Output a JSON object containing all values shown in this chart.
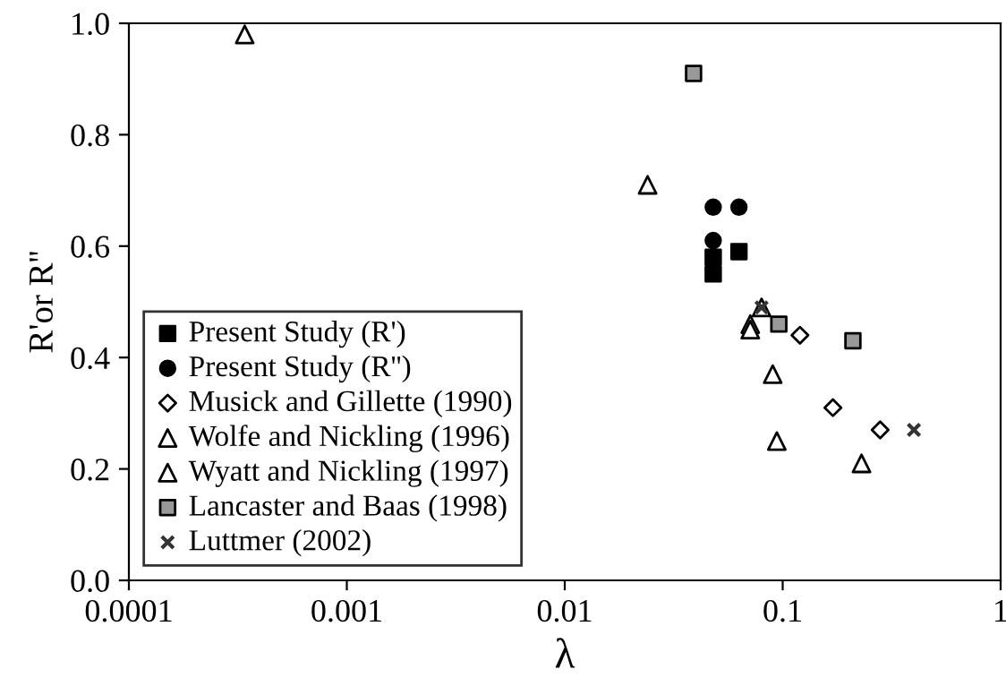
{
  "chart_data": {
    "type": "scatter",
    "xlabel": "λ",
    "ylabel": "R'or R''",
    "log": "x",
    "xlim": [
      0.0001,
      1
    ],
    "xticks": [
      {
        "value": 0.0001,
        "label": "0.0001"
      },
      {
        "value": 0.001,
        "label": "0.001"
      },
      {
        "value": 0.01,
        "label": "0.01"
      },
      {
        "value": 0.1,
        "label": "0.1"
      },
      {
        "value": 1,
        "label": "1"
      }
    ],
    "ylim": [
      0,
      1
    ],
    "yticks": [
      {
        "value": 0,
        "label": "0.0"
      },
      {
        "value": 0.2,
        "label": "0.2"
      },
      {
        "value": 0.4,
        "label": "0.4"
      },
      {
        "value": 0.6,
        "label": "0.6"
      },
      {
        "value": 0.8,
        "label": "0.8"
      },
      {
        "value": 1,
        "label": "1.0"
      }
    ],
    "grid": false,
    "legend": "bottom left",
    "series": [
      {
        "name": "Present Study (R')",
        "marker": "square",
        "color": "#000000",
        "x": [
          0.048,
          0.048,
          0.063
        ],
        "values": [
          0.58,
          0.55,
          0.59
        ]
      },
      {
        "name": "Present Study (R'')",
        "marker": "circle",
        "color": "#000000",
        "x": [
          0.048,
          0.063,
          0.048
        ],
        "values": [
          0.67,
          0.67,
          0.61
        ]
      },
      {
        "name": "Musick and Gillette (1990)",
        "marker": "diamond",
        "color": "#ffffff",
        "x": [
          0.12,
          0.17,
          0.28
        ],
        "values": [
          0.44,
          0.31,
          0.27
        ]
      },
      {
        "name": "Wolfe and Nickling (1996)",
        "marker": "triangle",
        "color": "#ffffff",
        "x": [
          0.00034,
          0.024,
          0.09,
          0.094,
          0.23
        ],
        "values": [
          0.98,
          0.71,
          0.37,
          0.25,
          0.21
        ]
      },
      {
        "name": "Wyatt and Nickling (1997)",
        "marker": "triangle",
        "color": "#ffffff",
        "x": [
          0.08,
          0.071,
          0.071
        ],
        "values": [
          0.49,
          0.46,
          0.45
        ]
      },
      {
        "name": "Lancaster and Baas (1998)",
        "marker": "square",
        "color": "#999999",
        "x": [
          0.039,
          0.096,
          0.21
        ],
        "values": [
          0.91,
          0.46,
          0.43
        ]
      },
      {
        "name": "Luttmer (2002)",
        "marker": "cross",
        "color": "#333333",
        "x": [
          0.08,
          0.4
        ],
        "values": [
          0.49,
          0.27
        ]
      }
    ]
  }
}
